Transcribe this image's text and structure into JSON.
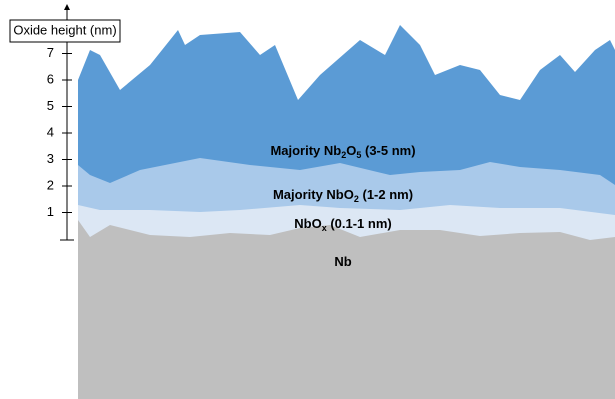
{
  "axis": {
    "label": "Oxide height (nm)",
    "ticks": [
      1,
      2,
      3,
      4,
      5,
      6,
      7
    ]
  },
  "layers": [
    {
      "label": [
        "Majority Nb",
        "2",
        "O",
        "5",
        " (3-5 nm)"
      ]
    },
    {
      "label": [
        "Majority NbO",
        "2",
        " (1-2 nm)"
      ]
    },
    {
      "label": [
        "NbO",
        "x",
        " (0.1-1 nm)"
      ]
    },
    {
      "label": [
        "Nb"
      ]
    }
  ]
}
